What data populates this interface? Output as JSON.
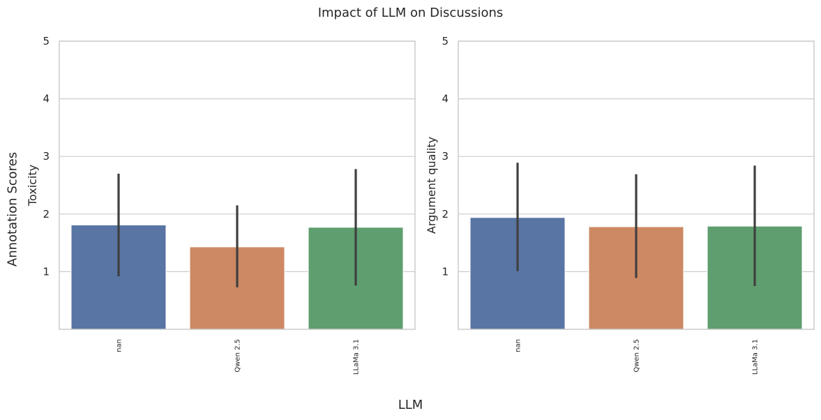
{
  "figure": {
    "title": "Impact of LLM on Discussions",
    "xlabel": "LLM",
    "ylabel": "Annotation Scores"
  },
  "colors": {
    "blue": "#5875a4",
    "orange": "#cc8963",
    "green": "#5f9e6e",
    "errorbar": "#3f3f3f",
    "grid": "#cccccc"
  },
  "chart_data": [
    {
      "type": "bar",
      "ylabel": "Toxicity",
      "categories": [
        "nan",
        "Qwen 2.5",
        "LLaMa 3.1"
      ],
      "values": [
        1.81,
        1.43,
        1.77
      ],
      "error_low": [
        0.92,
        0.73,
        0.76
      ],
      "error_high": [
        2.7,
        2.15,
        2.78
      ],
      "ylim": [
        0,
        5
      ],
      "yticks": [
        1,
        2,
        3,
        4,
        5
      ],
      "grid": true
    },
    {
      "type": "bar",
      "ylabel": "Argument quality",
      "categories": [
        "nan",
        "Qwen 2.5",
        "LLaMa 3.1"
      ],
      "values": [
        1.94,
        1.78,
        1.79
      ],
      "error_low": [
        1.01,
        0.89,
        0.75
      ],
      "error_high": [
        2.89,
        2.69,
        2.84
      ],
      "ylim": [
        0,
        5
      ],
      "yticks": [
        1,
        2,
        3,
        4,
        5
      ],
      "grid": true
    }
  ]
}
